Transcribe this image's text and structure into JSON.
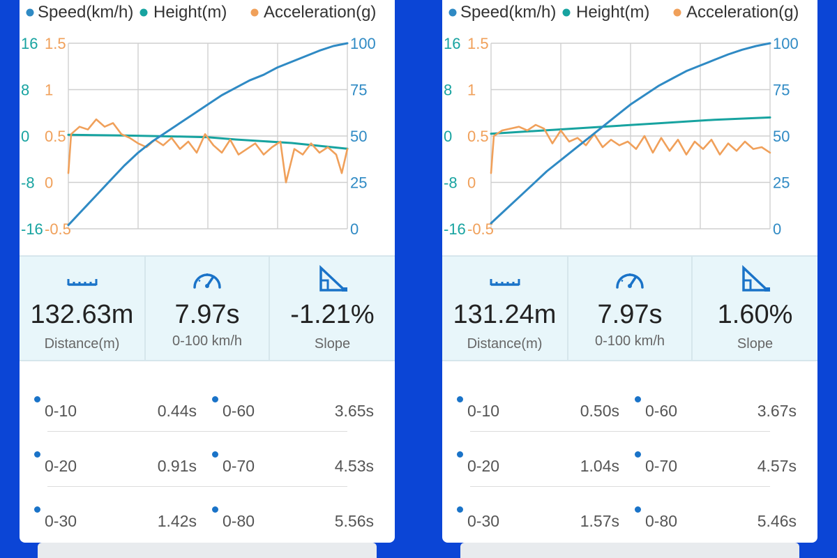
{
  "legend": {
    "speed": "Speed(km/h)",
    "height": "Height(m)",
    "acceleration": "Acceleration(g)"
  },
  "colors": {
    "background": "#0b45d6",
    "speed": "#2f8ac4",
    "height": "#17a3a0",
    "acceleration": "#f0a05a",
    "icon": "#1a73c8"
  },
  "axes": {
    "height_ticks": [
      "16",
      "8",
      "0",
      "-8",
      "-16"
    ],
    "acceleration_ticks": [
      "1.5",
      "1",
      "0.5",
      "0",
      "-0.5"
    ],
    "speed_ticks": [
      "100",
      "75",
      "50",
      "25",
      "0"
    ]
  },
  "icons": {
    "distance": "ruler-icon",
    "zero_to_hundred": "speedometer-icon",
    "slope": "slope-triangle-icon",
    "split": "dot-icon"
  },
  "panels": [
    {
      "chart_data": {
        "type": "line",
        "title": "",
        "xlabel": "",
        "x": [
          0,
          1
        ],
        "grid": true,
        "legend": "top",
        "ylim_height": [
          -16,
          16
        ],
        "ylim_acceleration": [
          -0.5,
          1.5
        ],
        "ylim_speed": [
          0,
          100
        ],
        "series": [
          {
            "name": "Speed(km/h)",
            "axis": "speed",
            "points": [
              [
                0,
                2
              ],
              [
                0.05,
                10
              ],
              [
                0.1,
                18
              ],
              [
                0.15,
                26
              ],
              [
                0.2,
                34
              ],
              [
                0.25,
                41
              ],
              [
                0.3,
                47
              ],
              [
                0.35,
                52
              ],
              [
                0.4,
                57
              ],
              [
                0.45,
                62
              ],
              [
                0.5,
                67
              ],
              [
                0.55,
                72
              ],
              [
                0.6,
                76
              ],
              [
                0.65,
                80
              ],
              [
                0.7,
                83
              ],
              [
                0.75,
                87
              ],
              [
                0.8,
                90
              ],
              [
                0.85,
                93
              ],
              [
                0.9,
                96
              ],
              [
                0.95,
                98.5
              ],
              [
                1,
                100
              ]
            ]
          },
          {
            "name": "Height(m)",
            "axis": "height",
            "points": [
              [
                0,
                0.2
              ],
              [
                0.2,
                0.1
              ],
              [
                0.4,
                -0.1
              ],
              [
                0.5,
                -0.2
              ],
              [
                0.6,
                -0.6
              ],
              [
                0.8,
                -1.2
              ],
              [
                1,
                -2.2
              ]
            ]
          },
          {
            "name": "Acceleration(g)",
            "axis": "acceleration",
            "points": [
              [
                0,
                0.1
              ],
              [
                0.01,
                0.52
              ],
              [
                0.04,
                0.6
              ],
              [
                0.07,
                0.57
              ],
              [
                0.1,
                0.68
              ],
              [
                0.13,
                0.6
              ],
              [
                0.16,
                0.64
              ],
              [
                0.19,
                0.52
              ],
              [
                0.22,
                0.48
              ],
              [
                0.25,
                0.42
              ],
              [
                0.28,
                0.38
              ],
              [
                0.31,
                0.46
              ],
              [
                0.34,
                0.4
              ],
              [
                0.37,
                0.48
              ],
              [
                0.4,
                0.36
              ],
              [
                0.43,
                0.44
              ],
              [
                0.46,
                0.32
              ],
              [
                0.49,
                0.52
              ],
              [
                0.52,
                0.4
              ],
              [
                0.55,
                0.32
              ],
              [
                0.58,
                0.46
              ],
              [
                0.61,
                0.3
              ],
              [
                0.64,
                0.36
              ],
              [
                0.67,
                0.42
              ],
              [
                0.7,
                0.3
              ],
              [
                0.73,
                0.38
              ],
              [
                0.76,
                0.44
              ],
              [
                0.78,
                0.0
              ],
              [
                0.81,
                0.36
              ],
              [
                0.84,
                0.3
              ],
              [
                0.87,
                0.42
              ],
              [
                0.9,
                0.32
              ],
              [
                0.93,
                0.38
              ],
              [
                0.96,
                0.3
              ],
              [
                0.98,
                0.1
              ],
              [
                1,
                0.36
              ]
            ]
          }
        ]
      },
      "stats": {
        "distance_value": "132.63m",
        "distance_label": "Distance(m)",
        "time_value": "7.97s",
        "time_label": "0-100 km/h",
        "slope_value": "-1.21%",
        "slope_label": "Slope"
      },
      "splits": [
        {
          "left_label": "0-10",
          "left_value": "0.44s",
          "right_label": "0-60",
          "right_value": "3.65s"
        },
        {
          "left_label": "0-20",
          "left_value": "0.91s",
          "right_label": "0-70",
          "right_value": "4.53s"
        },
        {
          "left_label": "0-30",
          "left_value": "1.42s",
          "right_label": "0-80",
          "right_value": "5.56s"
        }
      ]
    },
    {
      "chart_data": {
        "type": "line",
        "title": "",
        "xlabel": "",
        "x": [
          0,
          1
        ],
        "grid": true,
        "legend": "top",
        "ylim_height": [
          -16,
          16
        ],
        "ylim_acceleration": [
          -0.5,
          1.5
        ],
        "ylim_speed": [
          0,
          100
        ],
        "series": [
          {
            "name": "Speed(km/h)",
            "axis": "speed",
            "points": [
              [
                0,
                3
              ],
              [
                0.05,
                10
              ],
              [
                0.1,
                17
              ],
              [
                0.15,
                24
              ],
              [
                0.2,
                31
              ],
              [
                0.25,
                37
              ],
              [
                0.3,
                43
              ],
              [
                0.35,
                49
              ],
              [
                0.4,
                55
              ],
              [
                0.45,
                61
              ],
              [
                0.5,
                67
              ],
              [
                0.55,
                72
              ],
              [
                0.6,
                77
              ],
              [
                0.65,
                81
              ],
              [
                0.7,
                85
              ],
              [
                0.75,
                88
              ],
              [
                0.8,
                91
              ],
              [
                0.85,
                94
              ],
              [
                0.9,
                96.5
              ],
              [
                0.95,
                98.5
              ],
              [
                1,
                100
              ]
            ]
          },
          {
            "name": "Height(m)",
            "axis": "height",
            "points": [
              [
                0,
                0.4
              ],
              [
                0.2,
                1.0
              ],
              [
                0.4,
                1.6
              ],
              [
                0.6,
                2.2
              ],
              [
                0.8,
                2.8
              ],
              [
                1,
                3.2
              ]
            ]
          },
          {
            "name": "Acceleration(g)",
            "axis": "acceleration",
            "points": [
              [
                0,
                0.1
              ],
              [
                0.01,
                0.5
              ],
              [
                0.04,
                0.56
              ],
              [
                0.07,
                0.58
              ],
              [
                0.1,
                0.6
              ],
              [
                0.13,
                0.56
              ],
              [
                0.16,
                0.62
              ],
              [
                0.19,
                0.58
              ],
              [
                0.22,
                0.42
              ],
              [
                0.25,
                0.56
              ],
              [
                0.28,
                0.44
              ],
              [
                0.31,
                0.48
              ],
              [
                0.34,
                0.4
              ],
              [
                0.37,
                0.52
              ],
              [
                0.4,
                0.38
              ],
              [
                0.43,
                0.46
              ],
              [
                0.46,
                0.4
              ],
              [
                0.49,
                0.44
              ],
              [
                0.52,
                0.36
              ],
              [
                0.55,
                0.5
              ],
              [
                0.58,
                0.32
              ],
              [
                0.61,
                0.48
              ],
              [
                0.64,
                0.34
              ],
              [
                0.67,
                0.46
              ],
              [
                0.7,
                0.3
              ],
              [
                0.73,
                0.44
              ],
              [
                0.76,
                0.36
              ],
              [
                0.79,
                0.46
              ],
              [
                0.82,
                0.3
              ],
              [
                0.85,
                0.42
              ],
              [
                0.88,
                0.34
              ],
              [
                0.91,
                0.44
              ],
              [
                0.94,
                0.36
              ],
              [
                0.97,
                0.38
              ],
              [
                1,
                0.32
              ]
            ]
          }
        ]
      },
      "stats": {
        "distance_value": "131.24m",
        "distance_label": "Distance(m)",
        "time_value": "7.97s",
        "time_label": "0-100 km/h",
        "slope_value": "1.60%",
        "slope_label": "Slope"
      },
      "splits": [
        {
          "left_label": "0-10",
          "left_value": "0.50s",
          "right_label": "0-60",
          "right_value": "3.67s"
        },
        {
          "left_label": "0-20",
          "left_value": "1.04s",
          "right_label": "0-70",
          "right_value": "4.57s"
        },
        {
          "left_label": "0-30",
          "left_value": "1.57s",
          "right_label": "0-80",
          "right_value": "5.46s"
        }
      ]
    }
  ]
}
